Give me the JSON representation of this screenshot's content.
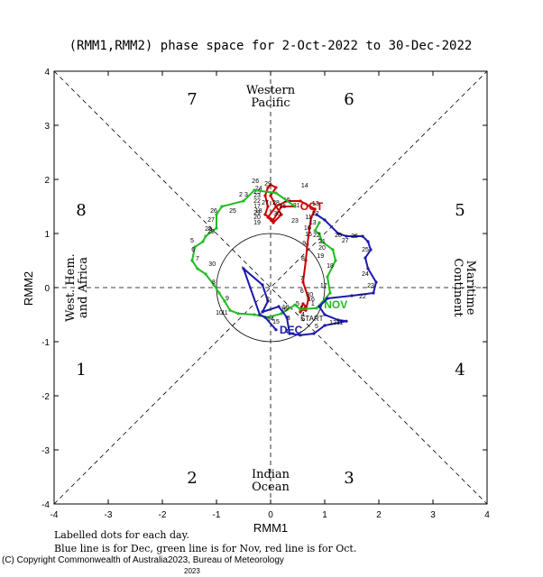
{
  "chart_data": {
    "type": "line",
    "title": "(RMM1,RMM2) phase space for  2-Oct-2022 to 30-Dec-2022",
    "xlabel": "RMM1",
    "ylabel": "RMM2",
    "xlim": [
      -4,
      4
    ],
    "ylim": [
      -4,
      4
    ],
    "x_ticks": [
      "-4",
      "-3",
      "-2",
      "-1",
      "0",
      "1",
      "2",
      "3",
      "4"
    ],
    "y_ticks": [
      "-4",
      "-3",
      "-2",
      "-1",
      "0",
      "1",
      "2",
      "3",
      "4"
    ],
    "grid": false,
    "phases": [
      {
        "label": "1",
        "x": -3.5,
        "y": -1.5
      },
      {
        "label": "2",
        "x": -1.45,
        "y": -3.5
      },
      {
        "label": "3",
        "x": 1.45,
        "y": -3.5
      },
      {
        "label": "4",
        "x": 3.5,
        "y": -1.5
      },
      {
        "label": "5",
        "x": 3.5,
        "y": 1.45
      },
      {
        "label": "6",
        "x": 1.45,
        "y": 3.5
      },
      {
        "label": "7",
        "x": -1.45,
        "y": 3.5
      },
      {
        "label": "8",
        "x": -3.5,
        "y": 1.45
      }
    ],
    "regions": [
      {
        "lines": [
          "Western",
          "Pacific"
        ],
        "x": 0,
        "y": 3.55,
        "orient": "h"
      },
      {
        "lines": [
          "Indian",
          "Ocean"
        ],
        "x": 0,
        "y": -3.55,
        "orient": "h"
      },
      {
        "lines": [
          "Maritime",
          "Continent"
        ],
        "x": 3.6,
        "y": 0,
        "orient": "vr"
      },
      {
        "lines": [
          "West. Hem.",
          "and Africa"
        ],
        "x": -3.6,
        "y": 0,
        "orient": "vl"
      }
    ],
    "series": [
      {
        "name": "Oct",
        "color": "#cc0000",
        "points": [
          [
            0.55,
            -0.45
          ],
          [
            0.65,
            -0.35
          ],
          [
            0.6,
            -0.3
          ],
          [
            0.55,
            -0.4
          ],
          [
            0.65,
            -0.42
          ],
          [
            0.7,
            -0.2
          ],
          [
            0.6,
            0.1
          ],
          [
            0.65,
            0.5
          ],
          [
            0.68,
            0.8
          ],
          [
            0.72,
            1.1
          ],
          [
            0.75,
            1.3
          ],
          [
            0.8,
            1.4
          ],
          [
            0.82,
            1.45
          ],
          [
            0.55,
            1.6
          ],
          [
            0.3,
            1.6
          ],
          [
            0.1,
            1.5
          ],
          [
            -0.05,
            1.3
          ],
          [
            0.05,
            1.2
          ],
          [
            0.2,
            1.35
          ],
          [
            0.1,
            1.5
          ],
          [
            0.0,
            1.7
          ],
          [
            0.1,
            1.85
          ],
          [
            0.0,
            1.9
          ],
          [
            -0.05,
            1.85
          ],
          [
            -0.1,
            1.7
          ],
          [
            -0.05,
            1.5
          ],
          [
            -0.1,
            1.35
          ],
          [
            0.05,
            1.25
          ],
          [
            0.2,
            1.5
          ],
          [
            0.45,
            1.5
          ]
        ],
        "labels": [
          {
            "t": "2",
            "x": 0.57,
            "y": -0.37
          },
          {
            "t": "4",
            "x": 0.6,
            "y": -0.48
          },
          {
            "t": "5",
            "x": 0.5,
            "y": -0.28
          },
          {
            "t": "6",
            "x": 0.58,
            "y": -0.05
          },
          {
            "t": "7",
            "x": 0.58,
            "y": 0.18
          },
          {
            "t": "8",
            "x": 0.6,
            "y": 0.55
          },
          {
            "t": "9",
            "x": 0.62,
            "y": 0.83
          },
          {
            "t": "10",
            "x": 0.68,
            "y": 1.12
          },
          {
            "t": "11",
            "x": 0.7,
            "y": 1.32
          },
          {
            "t": "12",
            "x": 0.83,
            "y": 1.38
          },
          {
            "t": "13",
            "x": 0.83,
            "y": 1.57
          },
          {
            "t": "14",
            "x": 0.63,
            "y": 1.9
          },
          {
            "t": "15",
            "x": 0.3,
            "y": 1.63
          },
          {
            "t": "16",
            "x": 0.22,
            "y": 1.52
          },
          {
            "t": "17",
            "x": -0.25,
            "y": 1.52
          },
          {
            "t": "18",
            "x": -0.22,
            "y": 1.43
          },
          {
            "t": "19",
            "x": -0.25,
            "y": 1.22
          },
          {
            "t": "20",
            "x": -0.25,
            "y": 1.32
          },
          {
            "t": "21",
            "x": -0.25,
            "y": 1.4
          },
          {
            "t": "22",
            "x": -0.25,
            "y": 1.62
          },
          {
            "t": "23",
            "x": -0.25,
            "y": 1.72
          },
          {
            "t": "24",
            "x": -0.22,
            "y": 1.85
          },
          {
            "t": "25",
            "x": -0.25,
            "y": 1.78
          },
          {
            "t": "26",
            "x": -0.28,
            "y": 1.98
          },
          {
            "t": "27",
            "x": -0.1,
            "y": 1.58
          },
          {
            "t": "28",
            "x": 0.1,
            "y": 1.58
          },
          {
            "t": "29",
            "x": -0.05,
            "y": 1.93
          },
          {
            "t": "30",
            "x": 0.12,
            "y": 1.38
          },
          {
            "t": "31",
            "x": 0.48,
            "y": 1.53
          }
        ],
        "end_label": "OCT",
        "end_xy": [
          0.48,
          1.5
        ]
      },
      {
        "name": "Nov",
        "color": "#22bb22",
        "points": [
          [
            0.45,
            1.5
          ],
          [
            0.1,
            1.75
          ],
          [
            -0.3,
            1.8
          ],
          [
            -0.5,
            1.6
          ],
          [
            -0.9,
            1.5
          ],
          [
            -1.0,
            1.35
          ],
          [
            -1.0,
            1.1
          ],
          [
            -1.2,
            0.95
          ],
          [
            -1.25,
            0.85
          ],
          [
            -1.4,
            0.75
          ],
          [
            -1.45,
            0.5
          ],
          [
            -1.35,
            0.35
          ],
          [
            -1.2,
            0.25
          ],
          [
            -1.05,
            0.05
          ],
          [
            -0.95,
            -0.1
          ],
          [
            -0.85,
            -0.25
          ],
          [
            -0.75,
            -0.42
          ],
          [
            -0.6,
            -0.48
          ],
          [
            -0.3,
            -0.5
          ],
          [
            -0.05,
            -0.55
          ],
          [
            0.2,
            -0.48
          ],
          [
            0.45,
            -0.32
          ],
          [
            0.55,
            -0.4
          ],
          [
            0.85,
            -0.38
          ],
          [
            1.1,
            -0.1
          ],
          [
            1.05,
            0.2
          ],
          [
            1.2,
            0.5
          ],
          [
            1.15,
            0.7
          ],
          [
            0.95,
            0.85
          ],
          [
            0.9,
            1.0
          ],
          [
            0.82,
            1.05
          ],
          [
            0.9,
            1.2
          ]
        ],
        "labels": [
          {
            "t": "2",
            "x": -0.55,
            "y": 1.73
          },
          {
            "t": "3",
            "x": -0.45,
            "y": 1.73
          },
          {
            "t": "26",
            "x": -1.05,
            "y": 1.43
          },
          {
            "t": "27",
            "x": -1.1,
            "y": 1.27
          },
          {
            "t": "28",
            "x": -1.15,
            "y": 1.1
          },
          {
            "t": "29",
            "x": -1.1,
            "y": 1.05
          },
          {
            "t": "25",
            "x": -0.7,
            "y": 1.43
          },
          {
            "t": "5",
            "x": -1.45,
            "y": 0.88
          },
          {
            "t": "6",
            "x": -1.43,
            "y": 0.72
          },
          {
            "t": "7",
            "x": -1.35,
            "y": 0.55
          },
          {
            "t": "30",
            "x": -1.08,
            "y": 0.45
          },
          {
            "t": "8",
            "x": -1.05,
            "y": 0.12
          },
          {
            "t": "9",
            "x": -0.8,
            "y": -0.18
          },
          {
            "t": "10",
            "x": -0.95,
            "y": -0.45
          },
          {
            "t": "11",
            "x": -0.85,
            "y": -0.45
          },
          {
            "t": "14",
            "x": 0.0,
            "y": -0.57
          },
          {
            "t": "15",
            "x": 0.1,
            "y": -0.62
          },
          {
            "t": "16",
            "x": 0.25,
            "y": -0.38
          },
          {
            "t": "17",
            "x": 0.98,
            "y": 0.05
          },
          {
            "t": "18",
            "x": 1.1,
            "y": 0.42
          },
          {
            "t": "19",
            "x": 0.92,
            "y": 0.6
          },
          {
            "t": "20",
            "x": 0.95,
            "y": 0.75
          },
          {
            "t": "21",
            "x": 0.95,
            "y": 0.87
          },
          {
            "t": "22",
            "x": 0.85,
            "y": 0.98
          },
          {
            "t": "23",
            "x": 0.45,
            "y": 1.25
          },
          {
            "t": "13",
            "x": 0.78,
            "y": 1.22
          },
          {
            "t": "15",
            "x": 0.7,
            "y": 1.0
          },
          {
            "t": "30",
            "x": 0.72,
            "y": -0.12
          }
        ],
        "end_label": "NOV",
        "end_xy": [
          0.92,
          -0.32
        ]
      },
      {
        "name": "Dec",
        "color": "#1a1aaa",
        "points": [
          [
            0.85,
            1.35
          ],
          [
            1.0,
            1.25
          ],
          [
            1.25,
            1.0
          ],
          [
            1.4,
            0.95
          ],
          [
            1.55,
            0.95
          ],
          [
            1.7,
            0.95
          ],
          [
            1.8,
            0.85
          ],
          [
            1.85,
            0.7
          ],
          [
            1.75,
            0.55
          ],
          [
            1.8,
            0.35
          ],
          [
            1.95,
            0.1
          ],
          [
            1.9,
            -0.1
          ],
          [
            1.5,
            -0.15
          ],
          [
            1.05,
            -0.2
          ],
          [
            0.9,
            -0.35
          ],
          [
            1.0,
            -0.5
          ],
          [
            1.25,
            -0.6
          ],
          [
            1.4,
            -0.62
          ],
          [
            1.0,
            -0.7
          ],
          [
            0.8,
            -0.85
          ],
          [
            0.55,
            -0.88
          ],
          [
            0.35,
            -0.85
          ],
          [
            0.3,
            -0.55
          ],
          [
            0.15,
            -0.35
          ],
          [
            -0.15,
            -0.45
          ],
          [
            -0.05,
            -0.25
          ],
          [
            -0.15,
            0.05
          ],
          [
            -0.5,
            0.35
          ],
          [
            -0.2,
            -0.5
          ],
          [
            -0.1,
            -0.55
          ],
          [
            0.1,
            -0.78
          ]
        ],
        "labels": [
          {
            "t": "26",
            "x": 1.55,
            "y": 0.97
          },
          {
            "t": "27",
            "x": 1.38,
            "y": 0.88
          },
          {
            "t": "28",
            "x": 1.25,
            "y": 0.98
          },
          {
            "t": "25",
            "x": 1.75,
            "y": 0.72
          },
          {
            "t": "24",
            "x": 1.75,
            "y": 0.27
          },
          {
            "t": "23",
            "x": 1.85,
            "y": 0.05
          },
          {
            "t": "22",
            "x": 1.7,
            "y": -0.15
          },
          {
            "t": "12",
            "x": 1.15,
            "y": -0.63
          },
          {
            "t": "11",
            "x": 1.28,
            "y": -0.63
          },
          {
            "t": "5",
            "x": 0.85,
            "y": -0.7
          },
          {
            "t": "4",
            "x": 0.3,
            "y": -0.8
          },
          {
            "t": "3",
            "x": 0.33,
            "y": -0.55
          },
          {
            "t": "2",
            "x": -0.05,
            "y": -0.2
          },
          {
            "t": "19",
            "x": 0.28,
            "y": -0.35
          },
          {
            "t": "1",
            "x": 0.78,
            "y": -0.28
          },
          {
            "t": "16",
            "x": 0.75,
            "y": -0.2
          }
        ],
        "end_label": "DEC",
        "end_xy": [
          0.1,
          -0.78
        ]
      }
    ],
    "start_label": "START",
    "start_xy": [
      0.55,
      -0.45
    ],
    "footer_lines": [
      "Labelled dots for each day.",
      "Blue line is for Dec, green line is for Nov, red line is for Oct."
    ],
    "copyright": "(C) Copyright Commonwealth of Australia2023, Bureau of Meteorology",
    "copyright_year": "2023"
  }
}
